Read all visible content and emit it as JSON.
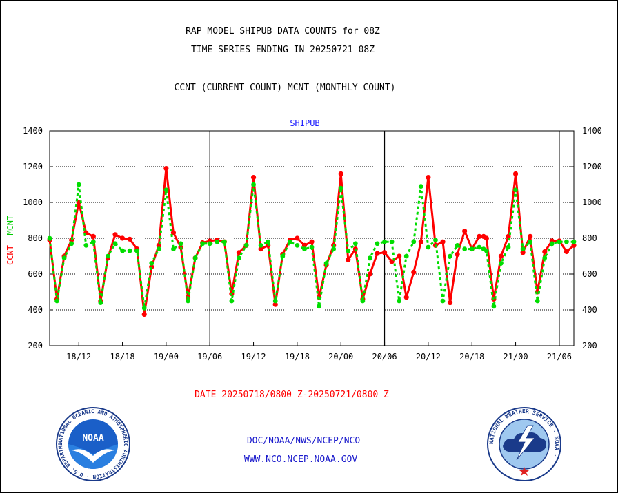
{
  "header": {
    "title_line1": "RAP MODEL SHIPUB DATA COUNTS for 08Z",
    "title_line2": "TIME SERIES ENDING IN 20250721 08Z",
    "title_line3": "CCNT (CURRENT COUNT) MCNT (MONTHLY COUNT)"
  },
  "footer": {
    "date_range": "DATE 20250718/0800 Z-20250721/0800 Z",
    "doc": "DOC/NOAA/NWS/NCEP/NCO",
    "www": "WWW.NCO.NCEP.NOAA.GOV"
  },
  "logos": {
    "noaa_text": "NOAA",
    "noaa_ring_text": "NATIONAL OCEANIC AND ATMOSPHERIC ADMINISTRATION · U.S. DEPARTMENT OF COMMERCE ·",
    "nws_ring_text": "NATIONAL WEATHER SERVICE · NOAA ·"
  },
  "colors": {
    "ccnt": "#ff0000",
    "mcnt": "#00dd00",
    "panel_title": "#1a1aff",
    "footer_link": "#1a1acc"
  },
  "chart_data": {
    "type": "line",
    "title": "SHIPUB",
    "ylabel_ccnt": "CCNT",
    "ylabel_mcnt": "MCNT",
    "ylim": [
      200,
      1400
    ],
    "yticks": [
      200,
      400,
      600,
      800,
      1000,
      1200,
      1400
    ],
    "ytick_labels": [
      "200",
      "400",
      "600",
      "800",
      "1000",
      "1200",
      "1400"
    ],
    "gridlines_at": [
      400,
      600,
      800,
      1000,
      1200
    ],
    "x_hours_range": [
      0,
      72
    ],
    "xticks_hours": [
      4,
      10,
      16,
      22,
      28,
      34,
      40,
      46,
      52,
      58,
      64,
      70
    ],
    "xtick_labels": [
      "18/12",
      "18/18",
      "19/00",
      "19/06",
      "19/12",
      "19/18",
      "20/00",
      "20/06",
      "20/12",
      "20/18",
      "21/00",
      "21/06"
    ],
    "day_separators_hours": [
      22,
      46,
      70
    ],
    "x_hours": [
      0,
      1,
      2,
      3,
      4,
      5,
      6,
      7,
      8,
      9,
      10,
      11,
      12,
      13,
      14,
      15,
      16,
      17,
      18,
      19,
      20,
      21,
      22,
      23,
      24,
      25,
      26,
      27,
      28,
      29,
      30,
      31,
      32,
      33,
      34,
      35,
      36,
      37,
      38,
      39,
      40,
      41,
      42,
      43,
      44,
      45,
      46,
      47,
      48,
      49,
      50,
      51,
      52,
      53,
      54,
      55,
      56,
      57,
      58,
      59,
      59.6,
      60,
      61,
      62,
      63,
      64,
      65,
      66,
      67,
      68,
      69,
      70,
      71,
      72
    ],
    "series": [
      {
        "name": "CCNT",
        "values": [
          790,
          460,
          700,
          790,
          1000,
          830,
          810,
          450,
          690,
          820,
          800,
          795,
          740,
          375,
          640,
          760,
          1190,
          830,
          750,
          470,
          690,
          775,
          785,
          790,
          780,
          490,
          720,
          760,
          1140,
          740,
          760,
          430,
          710,
          790,
          800,
          760,
          780,
          470,
          650,
          760,
          1160,
          680,
          740,
          460,
          600,
          715,
          720,
          670,
          700,
          470,
          610,
          780,
          1140,
          760,
          780,
          440,
          710,
          840,
          740,
          810,
          810,
          800,
          460,
          700,
          810,
          1160,
          720,
          810,
          500,
          725,
          785,
          785,
          725,
          760
        ]
      },
      {
        "name": "MCNT",
        "values": [
          800,
          450,
          690,
          770,
          1100,
          760,
          780,
          440,
          700,
          770,
          730,
          730,
          730,
          410,
          660,
          740,
          1070,
          740,
          770,
          450,
          690,
          770,
          770,
          780,
          780,
          450,
          690,
          760,
          1100,
          760,
          780,
          450,
          700,
          780,
          760,
          740,
          750,
          420,
          660,
          740,
          1080,
          730,
          770,
          450,
          690,
          770,
          780,
          780,
          450,
          700,
          780,
          1090,
          750,
          790,
          450,
          700,
          760,
          740,
          740,
          750,
          740,
          730,
          420,
          660,
          750,
          1070,
          740,
          780,
          450,
          690,
          770,
          780,
          780,
          780
        ]
      }
    ]
  }
}
